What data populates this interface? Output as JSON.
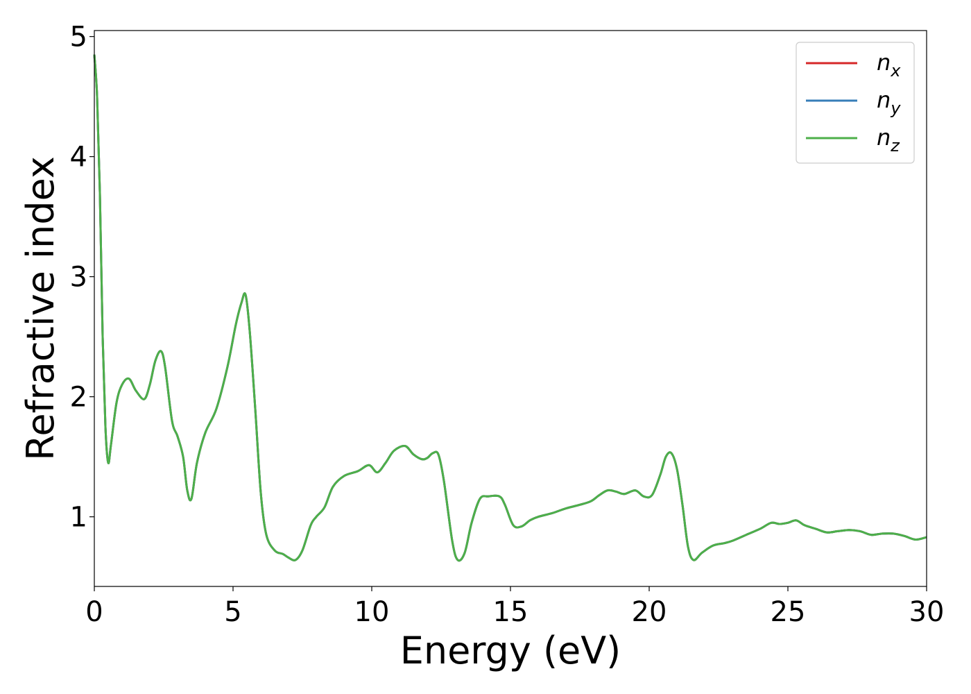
{
  "chart_data": {
    "type": "line",
    "title": "",
    "xlabel": "Energy (eV)",
    "ylabel": "Refractive index",
    "xlim": [
      0,
      30
    ],
    "ylim": [
      0.42,
      5.05
    ],
    "xticks": [
      0,
      5,
      10,
      15,
      20,
      25,
      30
    ],
    "yticks": [
      1,
      2,
      3,
      4,
      5
    ],
    "grid": false,
    "legend_position": "top-right",
    "x": [
      0,
      0.1,
      0.2,
      0.3,
      0.4,
      0.5,
      0.6,
      0.8,
      1.0,
      1.25,
      1.5,
      1.8,
      2.0,
      2.2,
      2.4,
      2.55,
      2.8,
      3.0,
      3.2,
      3.35,
      3.5,
      3.7,
      4.0,
      4.4,
      4.8,
      5.1,
      5.3,
      5.45,
      5.6,
      5.8,
      6.0,
      6.2,
      6.5,
      6.8,
      7.0,
      7.25,
      7.5,
      7.8,
      8.0,
      8.3,
      8.6,
      9.0,
      9.5,
      9.9,
      10.2,
      10.5,
      10.8,
      11.2,
      11.5,
      11.8,
      12.0,
      12.2,
      12.4,
      12.6,
      12.9,
      13.1,
      13.35,
      13.6,
      13.9,
      14.2,
      14.6,
      14.8,
      15.1,
      15.4,
      15.7,
      16.0,
      16.5,
      17.0,
      17.5,
      17.9,
      18.2,
      18.5,
      18.8,
      19.1,
      19.5,
      19.8,
      20.1,
      20.4,
      20.6,
      20.8,
      21.0,
      21.2,
      21.4,
      21.6,
      21.9,
      22.3,
      22.7,
      23.0,
      23.5,
      24.0,
      24.4,
      24.7,
      25.0,
      25.3,
      25.6,
      26.0,
      26.4,
      26.8,
      27.2,
      27.6,
      28.0,
      28.4,
      28.8,
      29.2,
      29.6,
      30.0
    ],
    "series": [
      {
        "name": "n_x",
        "color": "#d62728",
        "values": [
          4.85,
          4.5,
          3.7,
          2.5,
          1.75,
          1.45,
          1.6,
          1.95,
          2.1,
          2.15,
          2.05,
          1.98,
          2.1,
          2.3,
          2.38,
          2.25,
          1.8,
          1.67,
          1.5,
          1.22,
          1.15,
          1.45,
          1.7,
          1.9,
          2.25,
          2.6,
          2.78,
          2.85,
          2.55,
          1.9,
          1.2,
          0.85,
          0.72,
          0.69,
          0.66,
          0.64,
          0.72,
          0.93,
          1.0,
          1.08,
          1.25,
          1.34,
          1.38,
          1.43,
          1.37,
          1.45,
          1.55,
          1.59,
          1.52,
          1.48,
          1.49,
          1.53,
          1.52,
          1.3,
          0.8,
          0.64,
          0.7,
          0.95,
          1.15,
          1.17,
          1.17,
          1.1,
          0.93,
          0.92,
          0.97,
          1.0,
          1.03,
          1.07,
          1.1,
          1.13,
          1.18,
          1.22,
          1.21,
          1.19,
          1.22,
          1.17,
          1.18,
          1.35,
          1.5,
          1.53,
          1.4,
          1.1,
          0.75,
          0.64,
          0.7,
          0.76,
          0.78,
          0.8,
          0.85,
          0.9,
          0.95,
          0.94,
          0.95,
          0.97,
          0.93,
          0.9,
          0.87,
          0.88,
          0.89,
          0.88,
          0.85,
          0.86,
          0.86,
          0.84,
          0.81,
          0.83
        ]
      },
      {
        "name": "n_y",
        "color": "#377eb8",
        "values": [
          4.85,
          4.5,
          3.7,
          2.5,
          1.75,
          1.45,
          1.6,
          1.95,
          2.1,
          2.15,
          2.05,
          1.98,
          2.1,
          2.3,
          2.38,
          2.25,
          1.8,
          1.67,
          1.5,
          1.22,
          1.15,
          1.45,
          1.7,
          1.9,
          2.25,
          2.6,
          2.78,
          2.85,
          2.55,
          1.9,
          1.2,
          0.85,
          0.72,
          0.69,
          0.66,
          0.64,
          0.72,
          0.93,
          1.0,
          1.08,
          1.25,
          1.34,
          1.38,
          1.43,
          1.37,
          1.45,
          1.55,
          1.59,
          1.52,
          1.48,
          1.49,
          1.53,
          1.52,
          1.3,
          0.8,
          0.64,
          0.7,
          0.95,
          1.15,
          1.17,
          1.17,
          1.1,
          0.93,
          0.92,
          0.97,
          1.0,
          1.03,
          1.07,
          1.1,
          1.13,
          1.18,
          1.22,
          1.21,
          1.19,
          1.22,
          1.17,
          1.18,
          1.35,
          1.5,
          1.53,
          1.4,
          1.1,
          0.75,
          0.64,
          0.7,
          0.76,
          0.78,
          0.8,
          0.85,
          0.9,
          0.95,
          0.94,
          0.95,
          0.97,
          0.93,
          0.9,
          0.87,
          0.88,
          0.89,
          0.88,
          0.85,
          0.86,
          0.86,
          0.84,
          0.81,
          0.83
        ]
      },
      {
        "name": "n_z",
        "color": "#4daf4a",
        "values": [
          4.85,
          4.5,
          3.7,
          2.5,
          1.75,
          1.45,
          1.6,
          1.95,
          2.1,
          2.15,
          2.05,
          1.98,
          2.1,
          2.3,
          2.38,
          2.25,
          1.8,
          1.67,
          1.5,
          1.22,
          1.15,
          1.45,
          1.7,
          1.9,
          2.25,
          2.6,
          2.78,
          2.85,
          2.55,
          1.9,
          1.2,
          0.85,
          0.72,
          0.69,
          0.66,
          0.64,
          0.72,
          0.93,
          1.0,
          1.08,
          1.25,
          1.34,
          1.38,
          1.43,
          1.37,
          1.45,
          1.55,
          1.59,
          1.52,
          1.48,
          1.49,
          1.53,
          1.52,
          1.3,
          0.8,
          0.64,
          0.7,
          0.95,
          1.15,
          1.17,
          1.17,
          1.1,
          0.93,
          0.92,
          0.97,
          1.0,
          1.03,
          1.07,
          1.1,
          1.13,
          1.18,
          1.22,
          1.21,
          1.19,
          1.22,
          1.17,
          1.18,
          1.35,
          1.5,
          1.53,
          1.4,
          1.1,
          0.75,
          0.64,
          0.7,
          0.76,
          0.78,
          0.8,
          0.85,
          0.9,
          0.95,
          0.94,
          0.95,
          0.97,
          0.93,
          0.9,
          0.87,
          0.88,
          0.89,
          0.88,
          0.85,
          0.86,
          0.86,
          0.84,
          0.81,
          0.83
        ]
      }
    ],
    "legend": [
      {
        "base": "n",
        "sub": "x",
        "color": "#d62728"
      },
      {
        "base": "n",
        "sub": "y",
        "color": "#377eb8"
      },
      {
        "base": "n",
        "sub": "z",
        "color": "#4daf4a"
      }
    ]
  }
}
